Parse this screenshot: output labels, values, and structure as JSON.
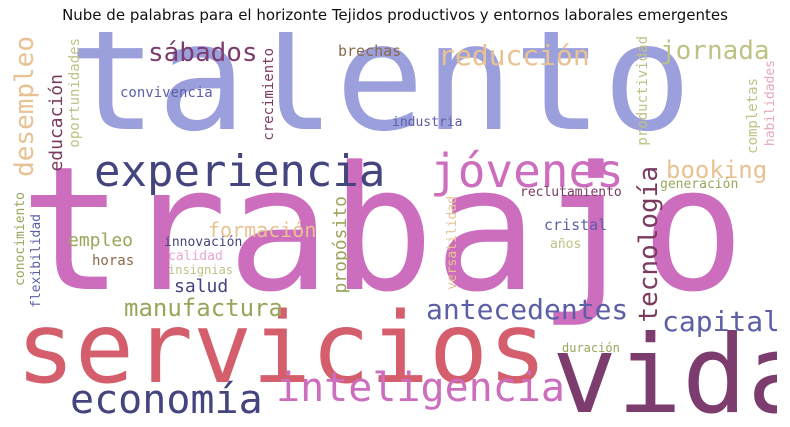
{
  "title": "Nube de palabras para el horizonte Tejidos productivos y entornos laborales emergentes",
  "palette": {
    "periwinkle": "#9b9fdc",
    "orchid": "#cc6dbe",
    "rose": "#d45e6b",
    "plum": "#7c3d6e",
    "navy": "#44447e",
    "indigo": "#5c5fa6",
    "sand": "#e8c292",
    "olive": "#9aa55c",
    "khaki": "#bfc185",
    "brown": "#8a6a4a",
    "wine": "#7b3a60"
  },
  "words": [
    {
      "id": "talento",
      "text": "talento"
    },
    {
      "id": "trabajo",
      "text": "trabajo"
    },
    {
      "id": "servicios",
      "text": "servicios"
    },
    {
      "id": "vida",
      "text": "vida"
    },
    {
      "id": "experiencia",
      "text": "experiencia"
    },
    {
      "id": "jovenes",
      "text": "jóvenes"
    },
    {
      "id": "inteligencia",
      "text": "inteligencia"
    },
    {
      "id": "economia",
      "text": "economía"
    },
    {
      "id": "manufactura",
      "text": "manufactura"
    },
    {
      "id": "antecedentes",
      "text": "antecedentes"
    },
    {
      "id": "capital",
      "text": "capital"
    },
    {
      "id": "tecnologia",
      "text": "tecnología"
    },
    {
      "id": "jornada",
      "text": "jornada"
    },
    {
      "id": "booking",
      "text": "booking"
    },
    {
      "id": "reduccion",
      "text": "reducción"
    },
    {
      "id": "sabados",
      "text": "sábados"
    },
    {
      "id": "desempleo",
      "text": "desempleo"
    },
    {
      "id": "educacion",
      "text": "educación"
    },
    {
      "id": "oportunidades",
      "text": "oportunidades"
    },
    {
      "id": "crecimiento",
      "text": "crecimiento"
    },
    {
      "id": "convivencia",
      "text": "convivencia"
    },
    {
      "id": "brechas",
      "text": "brechas"
    },
    {
      "id": "industria",
      "text": "industria"
    },
    {
      "id": "productividad",
      "text": "productividad"
    },
    {
      "id": "completas",
      "text": "completas"
    },
    {
      "id": "habilidades",
      "text": "habilidades"
    },
    {
      "id": "generacion",
      "text": "generación"
    },
    {
      "id": "reclutamiento",
      "text": "reclutamiento"
    },
    {
      "id": "formacion",
      "text": "formación"
    },
    {
      "id": "empleo",
      "text": "empleo"
    },
    {
      "id": "innovacion",
      "text": "innovación"
    },
    {
      "id": "calidad",
      "text": "calidad"
    },
    {
      "id": "insignias",
      "text": "insignias"
    },
    {
      "id": "horas",
      "text": "horas"
    },
    {
      "id": "salud",
      "text": "salud"
    },
    {
      "id": "proposito",
      "text": "propósito"
    },
    {
      "id": "versatilidad",
      "text": "versatilidad"
    },
    {
      "id": "cristal",
      "text": "cristal"
    },
    {
      "id": "anos",
      "text": "años"
    },
    {
      "id": "conocimiento",
      "text": "conocimiento"
    },
    {
      "id": "flexibilidad",
      "text": "flexibilidad"
    },
    {
      "id": "duracion",
      "text": "duración"
    }
  ]
}
